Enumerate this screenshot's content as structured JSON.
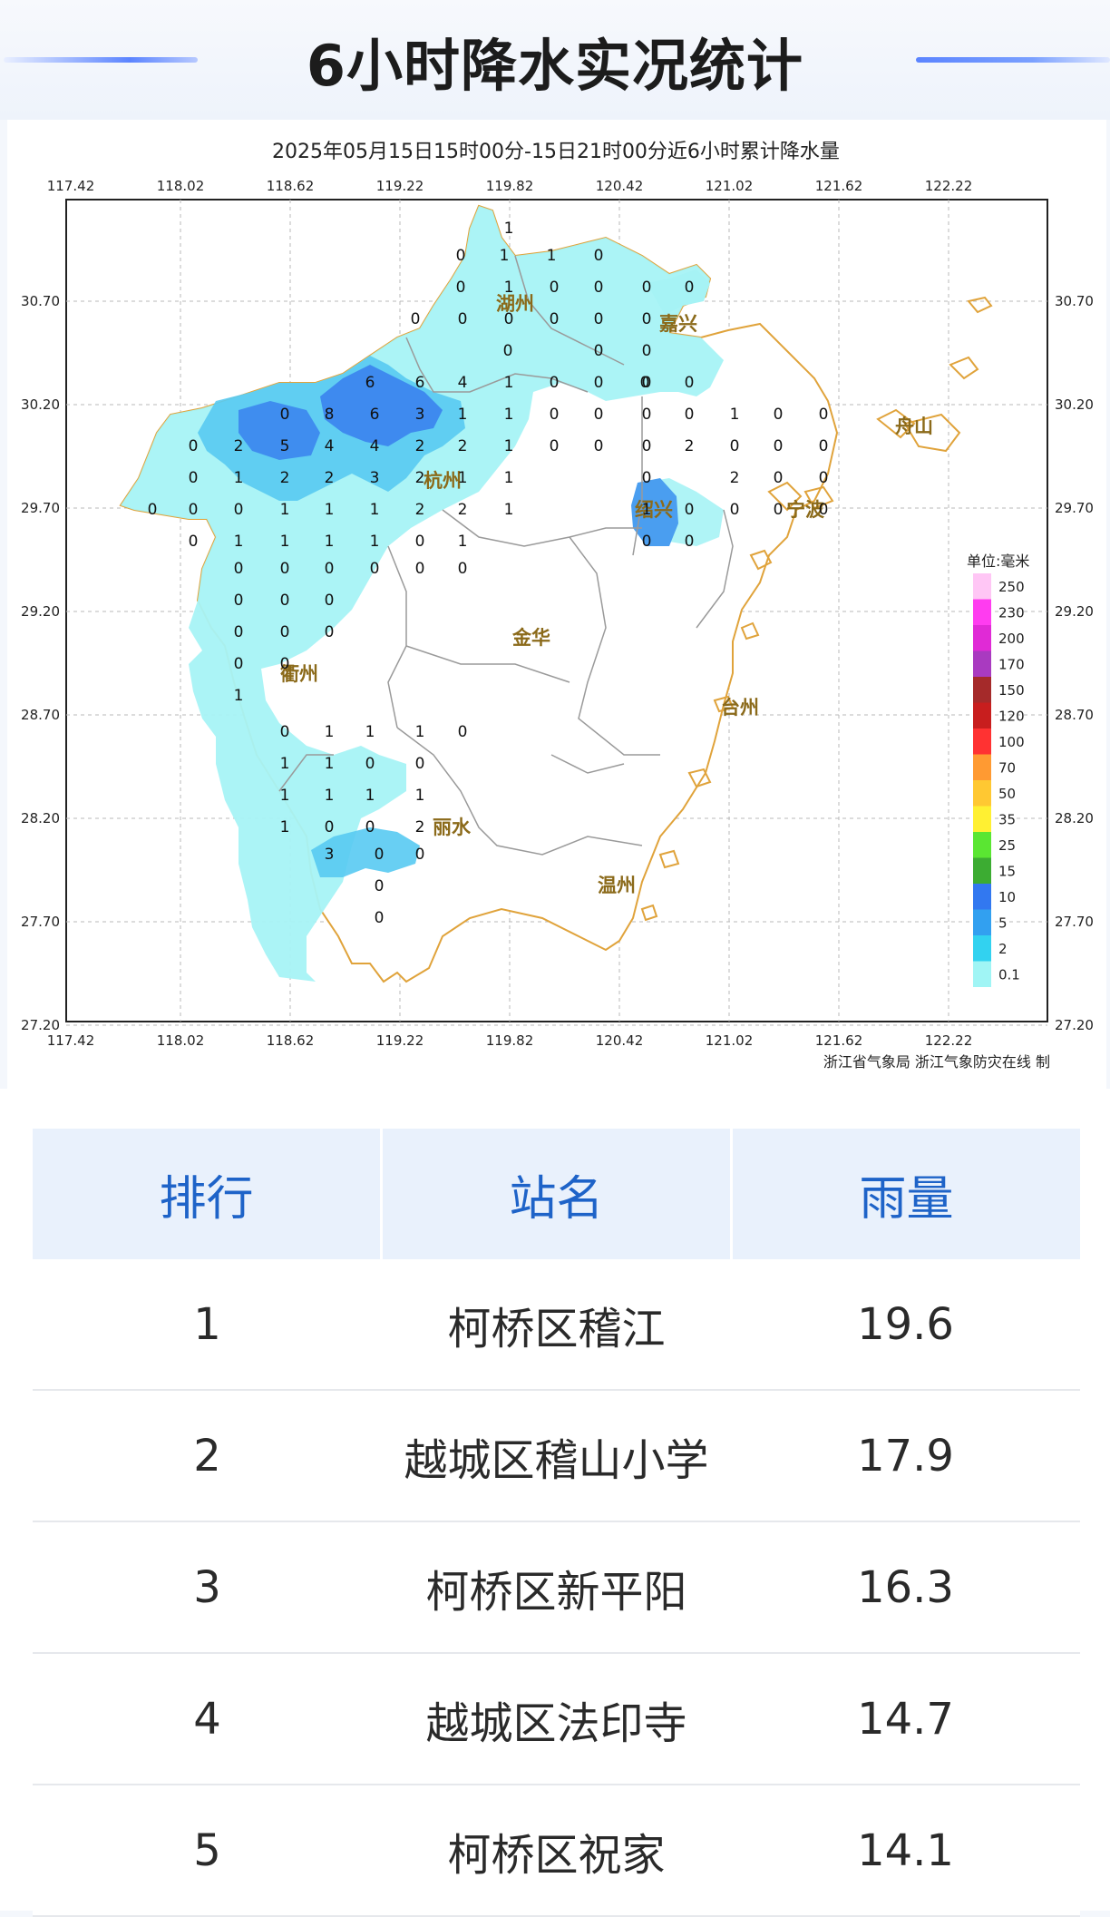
{
  "page": {
    "title": "6小时降水实况统计"
  },
  "map": {
    "caption": "2025年05月15日15时00分-15日21时00分近6小时累计降水量",
    "lon_ticks": [
      "117.42",
      "118.02",
      "118.62",
      "119.22",
      "119.82",
      "120.42",
      "121.02",
      "121.62",
      "122.22"
    ],
    "lat_ticks": [
      "30.70",
      "30.20",
      "29.70",
      "29.20",
      "28.70",
      "28.20",
      "27.70",
      "27.20"
    ],
    "city_labels": [
      "湖州",
      "嘉兴",
      "杭州",
      "绍兴",
      "宁波",
      "舟山",
      "衢州",
      "金华",
      "台州",
      "丽水",
      "温州"
    ],
    "credit": "浙江省气象局   浙江气象防灾在线 制",
    "legend": {
      "unit": "单位:毫米",
      "levels": [
        {
          "label": "250",
          "color": "#ffc6f5"
        },
        {
          "label": "230",
          "color": "#ff3cf0"
        },
        {
          "label": "200",
          "color": "#e02ad6"
        },
        {
          "label": "170",
          "color": "#a93ac0"
        },
        {
          "label": "150",
          "color": "#a52a2a"
        },
        {
          "label": "120",
          "color": "#c81e1e"
        },
        {
          "label": "100",
          "color": "#ff3232"
        },
        {
          "label": "70",
          "color": "#ff9a32"
        },
        {
          "label": "50",
          "color": "#ffc832"
        },
        {
          "label": "35",
          "color": "#fff032"
        },
        {
          "label": "25",
          "color": "#5ae632"
        },
        {
          "label": "15",
          "color": "#3cac32"
        },
        {
          "label": "10",
          "color": "#3278f0"
        },
        {
          "label": "5",
          "color": "#32a0f0"
        },
        {
          "label": "2",
          "color": "#32d2f0"
        },
        {
          "label": "0.1",
          "color": "#a0f5f5"
        }
      ]
    },
    "station_values": [
      "1",
      "0",
      "1",
      "1",
      "0",
      "0",
      "1",
      "0",
      "0",
      "0",
      "0",
      "0",
      "0",
      "0",
      "0",
      "0",
      "0",
      "0",
      "0",
      "0",
      "0",
      "6",
      "6",
      "4",
      "1",
      "0",
      "0",
      "0",
      "0",
      "0",
      "8",
      "6",
      "3",
      "1",
      "1",
      "0",
      "0",
      "0",
      "0",
      "1",
      "0",
      "0",
      "0",
      "2",
      "5",
      "4",
      "4",
      "2",
      "2",
      "1",
      "0",
      "0",
      "0",
      "2",
      "0",
      "0",
      "0",
      "0",
      "1",
      "2",
      "2",
      "3",
      "2",
      "1",
      "1",
      "0",
      "2",
      "0",
      "0",
      "0",
      "0",
      "0",
      "1",
      "1",
      "1",
      "2",
      "2",
      "1",
      "1",
      "0",
      "0",
      "0",
      "0",
      "0",
      "0",
      "1",
      "1",
      "1",
      "1",
      "0",
      "1",
      "0",
      "0",
      "0",
      "0",
      "0",
      "0",
      "0",
      "0",
      "0",
      "0",
      "0",
      "0",
      "0",
      "0",
      "0",
      "1",
      "0",
      "1",
      "1",
      "1",
      "0",
      "1",
      "1",
      "0",
      "0",
      "1",
      "1",
      "1",
      "1",
      "1",
      "0",
      "0",
      "2",
      "3",
      "0",
      "0",
      "0",
      "0",
      "0"
    ]
  },
  "table": {
    "headers": [
      "排行",
      "站名",
      "雨量"
    ],
    "rows": [
      {
        "rank": "1",
        "station": "柯桥区稽江",
        "rain": "19.6"
      },
      {
        "rank": "2",
        "station": "越城区稽山小学",
        "rain": "17.9"
      },
      {
        "rank": "3",
        "station": "柯桥区新平阳",
        "rain": "16.3"
      },
      {
        "rank": "4",
        "station": "越城区法印寺",
        "rain": "14.7"
      },
      {
        "rank": "5",
        "station": "柯桥区祝家",
        "rain": "14.1"
      }
    ]
  }
}
